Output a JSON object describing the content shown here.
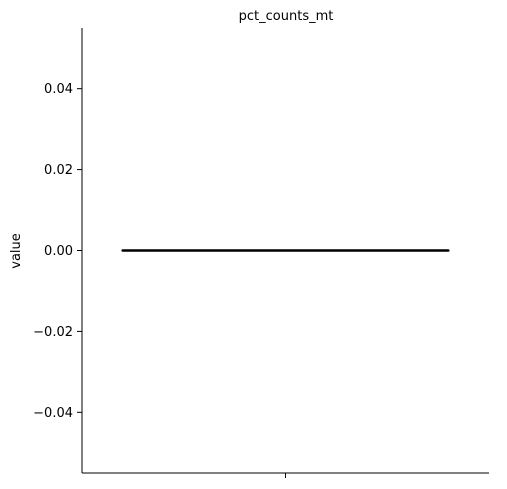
{
  "chart_data": {
    "type": "violin",
    "title": "pct_counts_mt",
    "xlabel": "",
    "ylabel": "value",
    "ylim": [
      -0.055,
      0.055
    ],
    "y_ticks": [
      -0.04,
      -0.02,
      0.0,
      0.02,
      0.04
    ],
    "y_tick_labels": [
      "−0.04",
      "−0.02",
      "0.00",
      "0.02",
      "0.04"
    ],
    "x_ticks": [
      ""
    ],
    "grid": false,
    "legend": "none",
    "series": [
      {
        "values": [
          0.0
        ],
        "color": "#000000"
      }
    ],
    "spines": [
      "left",
      "bottom"
    ]
  }
}
